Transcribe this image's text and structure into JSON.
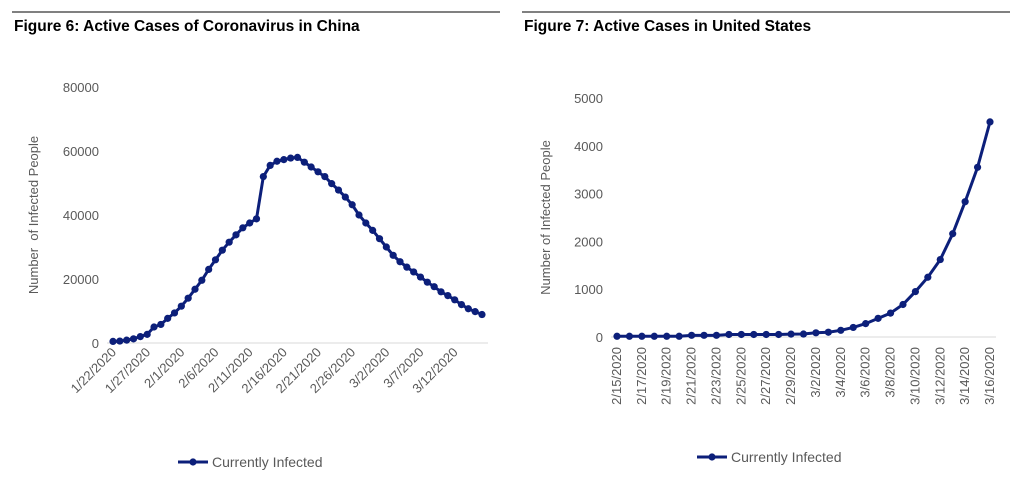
{
  "chart_data": [
    {
      "type": "line",
      "title": "Figure 6: Active Cases of Coronavirus in China",
      "y_label": "Number  of Infected People",
      "categories": [
        "1/22/2020",
        null,
        null,
        null,
        null,
        "1/27/2020",
        null,
        null,
        null,
        null,
        "2/1/2020",
        null,
        null,
        null,
        null,
        "2/6/2020",
        null,
        null,
        null,
        null,
        "2/11/2020",
        null,
        null,
        null,
        null,
        "2/16/2020",
        null,
        null,
        null,
        null,
        "2/21/2020",
        null,
        null,
        null,
        null,
        "2/26/2020",
        null,
        null,
        null,
        null,
        "3/2/2020",
        null,
        null,
        null,
        null,
        "3/7/2020",
        null,
        null,
        null,
        null,
        "3/12/2020",
        null,
        null,
        null,
        null
      ],
      "series": [
        {
          "name": "Currently Infected",
          "color": "#0c1f7a",
          "values": [
            500,
            600,
            900,
            1300,
            2000,
            2700,
            5000,
            5800,
            7700,
            9400,
            11500,
            14000,
            16800,
            19600,
            23000,
            26000,
            29000,
            31500,
            33800,
            36000,
            37500,
            38800,
            52000,
            55500,
            56800,
            57300,
            57800,
            58000,
            56500,
            55000,
            53500,
            52000,
            49800,
            47800,
            45600,
            43200,
            40000,
            37500,
            35200,
            32600,
            30000,
            27400,
            25400,
            23700,
            22200,
            20600,
            19000,
            17600,
            16000,
            14800,
            13500,
            12000,
            10700,
            9800,
            8900
          ]
        }
      ],
      "ylim": [
        0,
        80000
      ],
      "yticks": [
        0,
        20000,
        40000,
        60000,
        80000
      ],
      "legend": "bottom"
    },
    {
      "type": "line",
      "title": "Figure 7: Active Cases in United States",
      "y_label": "Number of Infected People",
      "categories": [
        "2/15/2020",
        null,
        "2/17/2020",
        null,
        "2/19/2020",
        null,
        "2/21/2020",
        null,
        "2/23/2020",
        null,
        "2/25/2020",
        null,
        "2/27/2020",
        null,
        "2/29/2020",
        null,
        "3/2/2020",
        null,
        "3/4/2020",
        null,
        "3/6/2020",
        null,
        "3/8/2020",
        null,
        "3/10/2020",
        null,
        "3/12/2020",
        null,
        "3/14/2020",
        null,
        "3/16/2020"
      ],
      "series": [
        {
          "name": "Currently Infected",
          "color": "#0c1f7a",
          "values": [
            15,
            15,
            15,
            15,
            15,
            15,
            35,
            35,
            35,
            53,
            53,
            53,
            53,
            53,
            60,
            62,
            88,
            100,
            140,
            200,
            280,
            390,
            500,
            680,
            950,
            1250,
            1620,
            2160,
            2830,
            3550,
            4500
          ]
        }
      ],
      "ylim": [
        0,
        5000
      ],
      "yticks": [
        0,
        1000,
        2000,
        3000,
        4000,
        5000
      ],
      "legend": "bottom"
    }
  ]
}
